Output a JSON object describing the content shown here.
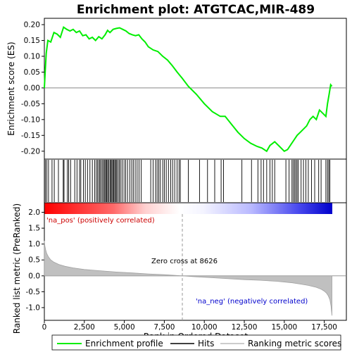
{
  "chart_data": {
    "type": "line",
    "title": "Enrichment plot: ATGTCAC,MIR-489",
    "xlabel": "Rank in Ordered Dataset",
    "es_ylabel": "Enrichment score (ES)",
    "metric_ylabel": "Ranked list metric (PreRanked)",
    "xlim": [
      0,
      18000
    ],
    "es_ylim": [
      -0.225,
      0.22
    ],
    "metric_ylim": [
      -1.4,
      2.3
    ],
    "x_ticks": [
      0,
      2500,
      5000,
      7500,
      10000,
      12500,
      15000,
      17500
    ],
    "x_tick_labels": [
      "0",
      "2,500",
      "5,000",
      "7,500",
      "10,000",
      "12,500",
      "15,000",
      "17,500"
    ],
    "es_ticks": [
      -0.2,
      -0.15,
      -0.1,
      -0.05,
      0.0,
      0.05,
      0.1,
      0.15,
      0.2
    ],
    "es_tick_labels": [
      "-0.20",
      "-0.15",
      "-0.10",
      "-0.05",
      "0.00",
      "0.05",
      "0.10",
      "0.15",
      "0.20"
    ],
    "metric_ticks": [
      -1.0,
      -0.5,
      0.0,
      0.5,
      1.0,
      1.5,
      2.0
    ],
    "metric_tick_labels": [
      "-1.0",
      "-0.5",
      "0.0",
      "0.5",
      "1.0",
      "1.5",
      "2.0"
    ],
    "series": [
      {
        "name": "Enrichment profile",
        "color": "#00ff00",
        "x": [
          0,
          60,
          120,
          220,
          400,
          600,
          800,
          1000,
          1200,
          1400,
          1600,
          1800,
          2000,
          2200,
          2400,
          2600,
          2800,
          3000,
          3200,
          3400,
          3600,
          3800,
          3950,
          4100,
          4300,
          4500,
          4700,
          4900,
          5100,
          5300,
          5500,
          5700,
          5900,
          6100,
          6300,
          6500,
          6800,
          7100,
          7400,
          7700,
          8000,
          8300,
          8626,
          9000,
          9500,
          10000,
          10500,
          11000,
          11300,
          11700,
          12100,
          12500,
          12900,
          13300,
          13600,
          13900,
          14100,
          14400,
          14700,
          15000,
          15200,
          15400,
          15600,
          15800,
          16000,
          16200,
          16400,
          16600,
          16800,
          17000,
          17200,
          17400,
          17600,
          17700,
          17800,
          17900,
          17980
        ],
        "y": [
          0.0,
          0.06,
          0.11,
          0.15,
          0.145,
          0.175,
          0.17,
          0.16,
          0.192,
          0.185,
          0.18,
          0.185,
          0.175,
          0.18,
          0.165,
          0.168,
          0.155,
          0.16,
          0.15,
          0.162,
          0.155,
          0.168,
          0.182,
          0.175,
          0.185,
          0.188,
          0.19,
          0.185,
          0.18,
          0.172,
          0.168,
          0.165,
          0.168,
          0.155,
          0.145,
          0.13,
          0.12,
          0.115,
          0.1,
          0.088,
          0.07,
          0.05,
          0.03,
          0.005,
          -0.02,
          -0.05,
          -0.075,
          -0.09,
          -0.09,
          -0.115,
          -0.14,
          -0.16,
          -0.175,
          -0.185,
          -0.19,
          -0.2,
          -0.182,
          -0.17,
          -0.185,
          -0.2,
          -0.195,
          -0.18,
          -0.165,
          -0.15,
          -0.14,
          -0.13,
          -0.12,
          -0.1,
          -0.09,
          -0.1,
          -0.07,
          -0.08,
          -0.09,
          -0.05,
          -0.02,
          0.01,
          0.005
        ]
      }
    ],
    "hits_label": "Hits",
    "hits": [
      60,
      150,
      260,
      480,
      620,
      880,
      1180,
      1230,
      1440,
      1520,
      1640,
      1900,
      2040,
      2200,
      2280,
      2440,
      2560,
      2700,
      2850,
      3000,
      3150,
      3250,
      3330,
      3420,
      3480,
      3560,
      3640,
      3720,
      3780,
      3840,
      3900,
      3960,
      4020,
      4100,
      4160,
      4220,
      4280,
      4340,
      4400,
      4460,
      4520,
      4600,
      4680,
      4760,
      4860,
      4980,
      5080,
      5200,
      5340,
      5460,
      5560,
      5680,
      5800,
      5920,
      6050,
      6650,
      6800,
      6950,
      7050,
      7150,
      7250,
      7400,
      7500,
      7620,
      7760,
      7900,
      8020,
      8150,
      8300,
      8420,
      8500,
      9000,
      9700,
      10200,
      10650,
      11050,
      11200,
      12350,
      12950,
      13350,
      13550,
      13700,
      13900,
      14100,
      14250,
      14400,
      15100,
      15300,
      15480,
      15560,
      15650,
      15720,
      15800,
      15880,
      16050,
      16200,
      16350,
      16500,
      16700,
      16900,
      17150,
      17300,
      17600,
      17700,
      17780,
      17850
    ],
    "metric_label": "Ranking metric scores",
    "metric_curve": {
      "x": [
        0,
        30,
        80,
        150,
        250,
        400,
        600,
        900,
        1300,
        1800,
        2500,
        3500,
        4500,
        5500,
        6500,
        7500,
        8626,
        9500,
        10500,
        11500,
        12500,
        13500,
        14500,
        15500,
        16000,
        16500,
        17000,
        17300,
        17500,
        17650,
        17750,
        17850,
        17920,
        17980
      ],
      "y": [
        1.1,
        0.95,
        0.82,
        0.7,
        0.6,
        0.5,
        0.43,
        0.36,
        0.3,
        0.25,
        0.2,
        0.16,
        0.12,
        0.09,
        0.06,
        0.035,
        0.0,
        -0.03,
        -0.06,
        -0.09,
        -0.12,
        -0.14,
        -0.17,
        -0.22,
        -0.26,
        -0.3,
        -0.36,
        -0.42,
        -0.48,
        -0.55,
        -0.63,
        -0.75,
        -0.95,
        -1.25
      ]
    },
    "bar_gradient": [
      "#ff0000",
      "#ffffff",
      "#0000ff"
    ],
    "zero_cross_x": 8626,
    "annotations": {
      "pos": "'na_pos' (positively correlated)",
      "neg": "'na_neg' (negatively correlated)",
      "zero_cross": "Zero cross at 8626"
    },
    "legend_placement": "bottom"
  }
}
